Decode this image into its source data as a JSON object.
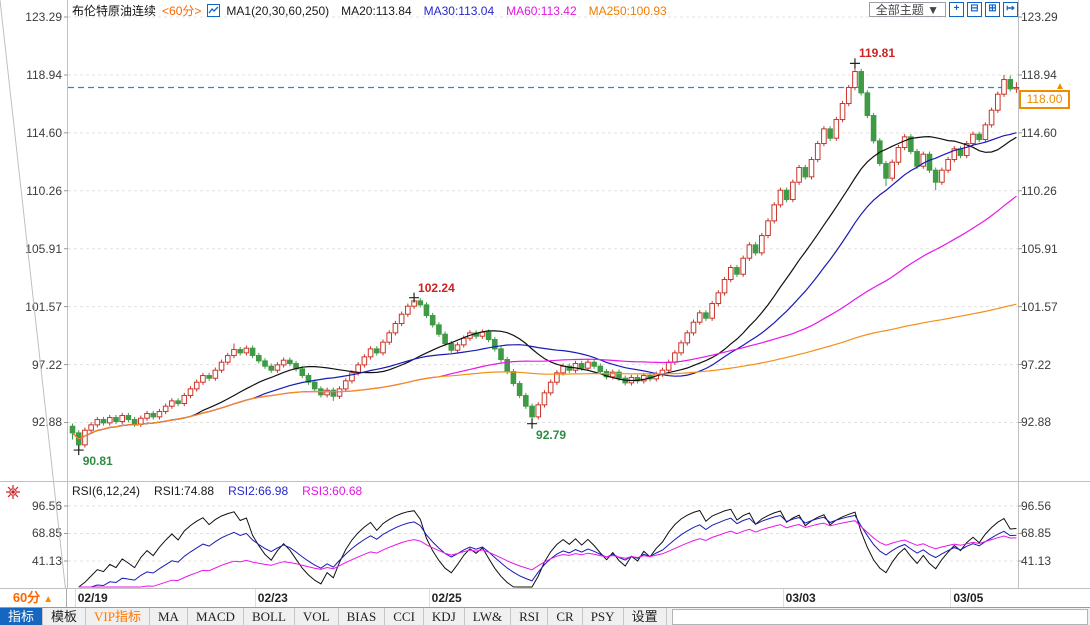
{
  "header": {
    "title": "布伦特原油连续",
    "period_tag": "<60分>",
    "legend": [
      {
        "label": "MA1(20,30,60,250)",
        "color": "#1a1a1a"
      },
      {
        "label": "MA20:113.84",
        "color": "#1a1a1a"
      },
      {
        "label": "MA30:113.04",
        "color": "#2727cf"
      },
      {
        "label": "MA60:113.42",
        "color": "#e316e3"
      },
      {
        "label": "MA250:100.93",
        "color": "#f07d00"
      }
    ],
    "theme_button": "全部主题 ▼",
    "icons": [
      {
        "name": "crosshair-icon",
        "glyph": "+"
      },
      {
        "name": "zoom-out-icon",
        "glyph": "⊟"
      },
      {
        "name": "zoom-in-icon",
        "glyph": "⊞"
      },
      {
        "name": "exit-icon",
        "glyph": "↦"
      }
    ]
  },
  "price_tag": {
    "value": "118.00",
    "arrow": "▲",
    "color": "#f08a00"
  },
  "rsi_header": {
    "title": "RSI(6,12,24)",
    "items": [
      {
        "label": "RSI1:74.88",
        "color": "#1a1a1a"
      },
      {
        "label": "RSI2:66.98",
        "color": "#2727cf"
      },
      {
        "label": "RSI3:60.68",
        "color": "#e316e3"
      }
    ]
  },
  "period_selector": {
    "label": "60分",
    "arrow": "▲"
  },
  "toolbar": {
    "tabs": [
      {
        "label": "指标",
        "name": "indicators",
        "selected": true
      },
      {
        "label": "模板",
        "name": "templates"
      },
      {
        "label": "VIP指标",
        "name": "vip-indicators",
        "vip": true
      },
      {
        "label": "MA",
        "name": "ma"
      },
      {
        "label": "MACD",
        "name": "macd"
      },
      {
        "label": "BOLL",
        "name": "boll"
      },
      {
        "label": "VOL",
        "name": "vol"
      },
      {
        "label": "BIAS",
        "name": "bias"
      },
      {
        "label": "CCI",
        "name": "cci"
      },
      {
        "label": "KDJ",
        "name": "kdj"
      },
      {
        "label": "LW&",
        "name": "lwr"
      },
      {
        "label": "RSI",
        "name": "rsi"
      },
      {
        "label": "CR",
        "name": "cr"
      },
      {
        "label": "PSY",
        "name": "psy"
      },
      {
        "label": "设置",
        "name": "settings"
      }
    ]
  },
  "chart_data": {
    "type": "candlestick",
    "title": "布伦特原油连续 60分",
    "y_ticks": [
      123.29,
      118.94,
      114.6,
      110.26,
      105.91,
      101.57,
      97.22,
      92.88
    ],
    "x_ticks": [
      {
        "label": "02/19",
        "index": 1
      },
      {
        "label": "02/23",
        "index": 30
      },
      {
        "label": "02/25",
        "index": 58
      },
      {
        "label": "03/03",
        "index": 115
      },
      {
        "label": "03/05",
        "index": 142
      }
    ],
    "current_price": 118.0,
    "annotations": [
      {
        "label": "119.81",
        "index": 126,
        "price": 119.81,
        "side": "above",
        "color": "#cc2222"
      },
      {
        "label": "102.24",
        "index": 55,
        "price": 102.24,
        "side": "above",
        "color": "#cc2222"
      },
      {
        "label": "92.79",
        "index": 74,
        "price": 92.79,
        "side": "below",
        "color": "#2e8b44"
      },
      {
        "label": "90.81",
        "index": 1,
        "price": 90.81,
        "side": "below",
        "color": "#2e8b44"
      }
    ],
    "ma_periods": [
      20,
      30,
      60,
      250
    ],
    "ma_colors": [
      "#111111",
      "#1a1ab8",
      "#e816e8",
      "#f39019"
    ],
    "rsi_periods": [
      6,
      12,
      24
    ],
    "rsi_colors": [
      "#111111",
      "#1a1ab8",
      "#e816e8"
    ],
    "rsi_ticks": [
      96.56,
      68.85,
      41.13
    ],
    "up_color": "#cc3329",
    "down_color": "#3f9a45",
    "dash_line_color": "#2a84e0",
    "grid_color": "#e0e0e0",
    "candles": [
      [
        92.6,
        92.8,
        91.6,
        92.1
      ],
      [
        92.1,
        92.3,
        90.81,
        91.2
      ],
      [
        91.2,
        92.5,
        91.0,
        92.3
      ],
      [
        92.3,
        92.9,
        92.1,
        92.7
      ],
      [
        92.7,
        93.3,
        92.5,
        93.1
      ],
      [
        93.1,
        93.3,
        92.65,
        92.85
      ],
      [
        92.85,
        93.45,
        92.65,
        93.25
      ],
      [
        93.25,
        93.45,
        92.75,
        92.95
      ],
      [
        92.95,
        93.6,
        92.75,
        93.4
      ],
      [
        93.4,
        93.6,
        92.9,
        93.1
      ],
      [
        93.1,
        93.3,
        92.55,
        92.75
      ],
      [
        92.75,
        93.4,
        92.55,
        93.2
      ],
      [
        93.2,
        93.75,
        93.0,
        93.55
      ],
      [
        93.55,
        93.75,
        93.1,
        93.3
      ],
      [
        93.3,
        93.9,
        93.1,
        93.7
      ],
      [
        93.7,
        94.3,
        93.5,
        94.1
      ],
      [
        94.1,
        94.7,
        93.9,
        94.5
      ],
      [
        94.5,
        94.7,
        94.1,
        94.3
      ],
      [
        94.3,
        95.1,
        94.1,
        94.9
      ],
      [
        94.9,
        95.6,
        94.7,
        95.4
      ],
      [
        95.4,
        96.1,
        95.2,
        95.9
      ],
      [
        95.9,
        96.6,
        95.7,
        96.4
      ],
      [
        96.4,
        96.6,
        96.0,
        96.2
      ],
      [
        96.2,
        97.0,
        96.0,
        96.8
      ],
      [
        96.8,
        97.6,
        96.6,
        97.4
      ],
      [
        97.4,
        98.1,
        97.2,
        97.9
      ],
      [
        97.9,
        98.8,
        97.7,
        98.35
      ],
      [
        98.35,
        98.55,
        97.9,
        98.1
      ],
      [
        98.1,
        98.65,
        97.9,
        98.45
      ],
      [
        98.45,
        98.65,
        97.7,
        97.9
      ],
      [
        97.9,
        98.1,
        97.3,
        97.5
      ],
      [
        97.5,
        97.7,
        96.9,
        97.1
      ],
      [
        97.1,
        97.3,
        96.6,
        96.8
      ],
      [
        96.8,
        97.4,
        96.6,
        97.2
      ],
      [
        97.2,
        97.75,
        97.0,
        97.55
      ],
      [
        97.55,
        97.75,
        97.1,
        97.3
      ],
      [
        97.3,
        97.5,
        96.7,
        96.9
      ],
      [
        96.9,
        97.1,
        96.2,
        96.4
      ],
      [
        96.4,
        96.6,
        95.7,
        95.9
      ],
      [
        95.9,
        96.1,
        95.2,
        95.4
      ],
      [
        95.4,
        95.6,
        94.75,
        94.95
      ],
      [
        94.95,
        95.5,
        94.75,
        95.3
      ],
      [
        95.3,
        95.5,
        94.5,
        94.85
      ],
      [
        94.85,
        95.6,
        94.65,
        95.4
      ],
      [
        95.4,
        96.2,
        95.2,
        96.0
      ],
      [
        96.0,
        96.8,
        95.8,
        96.6
      ],
      [
        96.6,
        97.4,
        96.4,
        97.2
      ],
      [
        97.2,
        98.0,
        97.0,
        97.8
      ],
      [
        97.8,
        98.6,
        97.6,
        98.4
      ],
      [
        98.4,
        98.6,
        97.9,
        98.1
      ],
      [
        98.1,
        99.1,
        97.9,
        98.9
      ],
      [
        98.9,
        99.8,
        98.7,
        99.6
      ],
      [
        99.6,
        100.5,
        99.4,
        100.3
      ],
      [
        100.3,
        101.2,
        100.1,
        101.0
      ],
      [
        101.0,
        101.8,
        100.8,
        101.6
      ],
      [
        101.6,
        102.24,
        101.4,
        102.0
      ],
      [
        102.0,
        102.2,
        101.5,
        101.7
      ],
      [
        101.7,
        101.9,
        100.7,
        100.9
      ],
      [
        100.9,
        101.1,
        100.0,
        100.2
      ],
      [
        100.2,
        100.4,
        99.3,
        99.5
      ],
      [
        99.5,
        99.7,
        98.6,
        98.8
      ],
      [
        98.8,
        99.0,
        98.1,
        98.3
      ],
      [
        98.3,
        98.9,
        98.1,
        98.7
      ],
      [
        98.7,
        99.4,
        98.5,
        99.2
      ],
      [
        99.2,
        99.8,
        99.0,
        99.6
      ],
      [
        99.6,
        99.8,
        99.15,
        99.35
      ],
      [
        99.35,
        99.85,
        99.15,
        99.65
      ],
      [
        99.65,
        99.85,
        98.9,
        99.1
      ],
      [
        99.1,
        99.3,
        98.2,
        98.4
      ],
      [
        98.4,
        98.6,
        97.4,
        97.6
      ],
      [
        97.6,
        97.8,
        96.5,
        96.7
      ],
      [
        96.7,
        96.9,
        95.6,
        95.8
      ],
      [
        95.8,
        96.0,
        94.7,
        94.9
      ],
      [
        94.9,
        95.1,
        93.9,
        94.1
      ],
      [
        94.1,
        94.3,
        92.79,
        93.3
      ],
      [
        93.3,
        94.4,
        93.1,
        94.2
      ],
      [
        94.2,
        95.3,
        94.0,
        95.1
      ],
      [
        95.1,
        96.1,
        94.9,
        95.9
      ],
      [
        95.9,
        96.8,
        95.7,
        96.6
      ],
      [
        96.6,
        97.3,
        96.4,
        97.1
      ],
      [
        97.1,
        97.3,
        96.6,
        96.8
      ],
      [
        96.8,
        97.5,
        96.6,
        97.3
      ],
      [
        97.3,
        97.5,
        96.75,
        96.95
      ],
      [
        96.95,
        97.6,
        96.75,
        97.4
      ],
      [
        97.4,
        97.6,
        96.9,
        97.1
      ],
      [
        97.1,
        97.3,
        96.5,
        96.7
      ],
      [
        96.7,
        96.9,
        96.1,
        96.3
      ],
      [
        96.3,
        96.85,
        96.1,
        96.65
      ],
      [
        96.65,
        96.85,
        96.0,
        96.2
      ],
      [
        96.2,
        96.4,
        95.65,
        95.85
      ],
      [
        95.85,
        96.45,
        95.65,
        96.25
      ],
      [
        96.25,
        96.45,
        95.8,
        96.0
      ],
      [
        96.0,
        96.6,
        95.8,
        96.4
      ],
      [
        96.4,
        96.6,
        95.95,
        96.15
      ],
      [
        96.15,
        96.7,
        95.95,
        96.5
      ],
      [
        96.5,
        97.0,
        96.3,
        96.8
      ],
      [
        96.8,
        97.6,
        96.6,
        97.4
      ],
      [
        97.4,
        98.3,
        97.2,
        98.1
      ],
      [
        98.1,
        99.05,
        97.9,
        98.85
      ],
      [
        98.85,
        99.8,
        98.65,
        99.6
      ],
      [
        99.6,
        100.6,
        99.4,
        100.4
      ],
      [
        100.4,
        101.3,
        100.2,
        101.1
      ],
      [
        101.1,
        101.3,
        100.5,
        100.7
      ],
      [
        100.7,
        102.0,
        100.5,
        101.8
      ],
      [
        101.8,
        102.8,
        101.6,
        102.6
      ],
      [
        102.6,
        103.8,
        102.4,
        103.6
      ],
      [
        103.6,
        104.7,
        103.4,
        104.5
      ],
      [
        104.5,
        104.7,
        103.8,
        104.0
      ],
      [
        104.0,
        105.4,
        103.8,
        105.2
      ],
      [
        105.2,
        106.4,
        105.0,
        106.2
      ],
      [
        106.2,
        106.4,
        105.4,
        105.6
      ],
      [
        105.6,
        107.1,
        105.4,
        106.9
      ],
      [
        106.9,
        108.2,
        106.7,
        108.0
      ],
      [
        108.0,
        109.4,
        107.8,
        109.2
      ],
      [
        109.2,
        110.5,
        109.0,
        110.3
      ],
      [
        110.3,
        110.5,
        109.4,
        109.6
      ],
      [
        109.6,
        111.1,
        109.4,
        110.9
      ],
      [
        110.9,
        112.2,
        110.7,
        112.0
      ],
      [
        112.0,
        112.2,
        111.1,
        111.3
      ],
      [
        111.3,
        112.8,
        111.1,
        112.6
      ],
      [
        112.6,
        114.0,
        112.4,
        113.8
      ],
      [
        113.8,
        115.1,
        113.6,
        114.9
      ],
      [
        114.9,
        115.1,
        114.0,
        114.2
      ],
      [
        114.2,
        115.8,
        114.0,
        115.6
      ],
      [
        115.6,
        117.0,
        115.4,
        116.8
      ],
      [
        116.8,
        118.2,
        116.6,
        118.0
      ],
      [
        118.0,
        119.81,
        117.8,
        119.2
      ],
      [
        119.2,
        119.4,
        117.4,
        117.6
      ],
      [
        117.6,
        117.8,
        115.7,
        115.9
      ],
      [
        115.9,
        116.1,
        113.8,
        114.0
      ],
      [
        114.0,
        114.2,
        112.1,
        112.3
      ],
      [
        112.3,
        112.5,
        110.6,
        111.2
      ],
      [
        111.2,
        112.6,
        111.0,
        112.4
      ],
      [
        112.4,
        113.7,
        112.2,
        113.5
      ],
      [
        113.5,
        114.5,
        113.3,
        114.3
      ],
      [
        114.3,
        114.5,
        113.0,
        113.2
      ],
      [
        113.2,
        113.4,
        111.9,
        112.1
      ],
      [
        112.1,
        113.2,
        111.9,
        113.0
      ],
      [
        113.0,
        113.2,
        111.6,
        111.8
      ],
      [
        111.8,
        112.0,
        110.3,
        110.9
      ],
      [
        110.9,
        112.0,
        110.7,
        111.8
      ],
      [
        111.8,
        112.8,
        111.6,
        112.6
      ],
      [
        112.6,
        113.6,
        112.4,
        113.4
      ],
      [
        113.4,
        113.6,
        112.7,
        112.9
      ],
      [
        112.9,
        114.0,
        112.7,
        113.8
      ],
      [
        113.8,
        114.7,
        113.6,
        114.5
      ],
      [
        114.5,
        114.7,
        113.9,
        114.1
      ],
      [
        114.1,
        115.4,
        113.9,
        115.2
      ],
      [
        115.2,
        116.5,
        115.0,
        116.3
      ],
      [
        116.3,
        117.7,
        116.1,
        117.5
      ],
      [
        117.5,
        118.94,
        117.3,
        118.6
      ],
      [
        118.6,
        118.9,
        117.7,
        117.9
      ],
      [
        117.9,
        118.4,
        117.6,
        118.0
      ]
    ]
  }
}
